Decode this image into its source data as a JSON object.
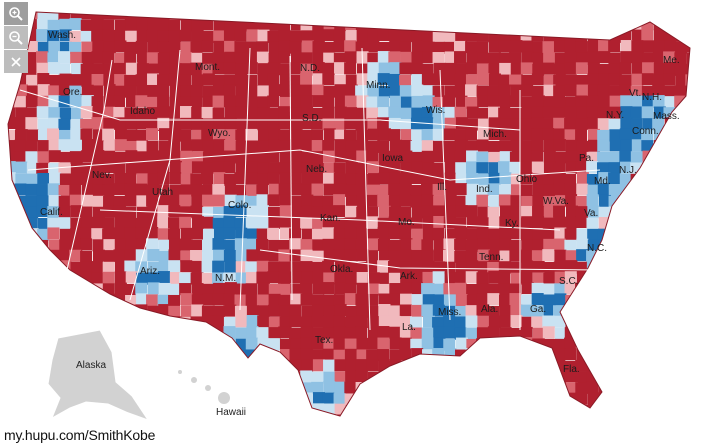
{
  "colors": {
    "strong_red": "#b0202f",
    "mid_red": "#d9646e",
    "light_red": "#f1b9bd",
    "light_blue": "#c9e2f2",
    "mid_blue": "#8fc1e3",
    "strong_blue": "#1f6fb2",
    "inset_gray": "#d2d2d2"
  },
  "controls": {
    "zoom_in_icon": "magnifier-plus-icon",
    "zoom_out_icon": "magnifier-minus-icon",
    "close_icon": "close-icon"
  },
  "states": [
    {
      "id": "wash",
      "label": "Wash."
    },
    {
      "id": "ore",
      "label": "Ore."
    },
    {
      "id": "idaho",
      "label": "Idaho"
    },
    {
      "id": "mont",
      "label": "Mont."
    },
    {
      "id": "wyo",
      "label": "Wyo."
    },
    {
      "id": "nev",
      "label": "Nev."
    },
    {
      "id": "utah",
      "label": "Utah"
    },
    {
      "id": "calif",
      "label": "Calif."
    },
    {
      "id": "colo",
      "label": "Colo."
    },
    {
      "id": "ariz",
      "label": "Ariz."
    },
    {
      "id": "nm",
      "label": "N.M."
    },
    {
      "id": "nd",
      "label": "N.D."
    },
    {
      "id": "sd",
      "label": "S.D."
    },
    {
      "id": "neb",
      "label": "Neb."
    },
    {
      "id": "kan",
      "label": "Kan."
    },
    {
      "id": "okla",
      "label": "Okla."
    },
    {
      "id": "tex",
      "label": "Tex."
    },
    {
      "id": "minn",
      "label": "Minn."
    },
    {
      "id": "iowa",
      "label": "Iowa"
    },
    {
      "id": "mo",
      "label": "Mo."
    },
    {
      "id": "ark",
      "label": "Ark."
    },
    {
      "id": "la",
      "label": "La."
    },
    {
      "id": "wis",
      "label": "Wis."
    },
    {
      "id": "ill",
      "label": "Ill."
    },
    {
      "id": "mich",
      "label": "Mich."
    },
    {
      "id": "ind",
      "label": "Ind."
    },
    {
      "id": "ohio",
      "label": "Ohio"
    },
    {
      "id": "ky",
      "label": "Ky."
    },
    {
      "id": "tenn",
      "label": "Tenn."
    },
    {
      "id": "miss",
      "label": "Miss."
    },
    {
      "id": "ala",
      "label": "Ala."
    },
    {
      "id": "ga",
      "label": "Ga."
    },
    {
      "id": "fla",
      "label": "Fla."
    },
    {
      "id": "sc",
      "label": "S.C."
    },
    {
      "id": "nc",
      "label": "N.C."
    },
    {
      "id": "va",
      "label": "Va."
    },
    {
      "id": "wva",
      "label": "W.Va."
    },
    {
      "id": "pa",
      "label": "Pa."
    },
    {
      "id": "ny",
      "label": "N.Y."
    },
    {
      "id": "md",
      "label": "Md."
    },
    {
      "id": "nj",
      "label": "N.J."
    },
    {
      "id": "conn",
      "label": "Conn."
    },
    {
      "id": "mass",
      "label": "Mass."
    },
    {
      "id": "vt",
      "label": "Vt."
    },
    {
      "id": "nh",
      "label": "N.H."
    },
    {
      "id": "me",
      "label": "Me."
    }
  ],
  "insets": {
    "alaska": "Alaska",
    "hawaii": "Hawaii"
  },
  "watermark": "my.hupu.com/SmithKobe"
}
